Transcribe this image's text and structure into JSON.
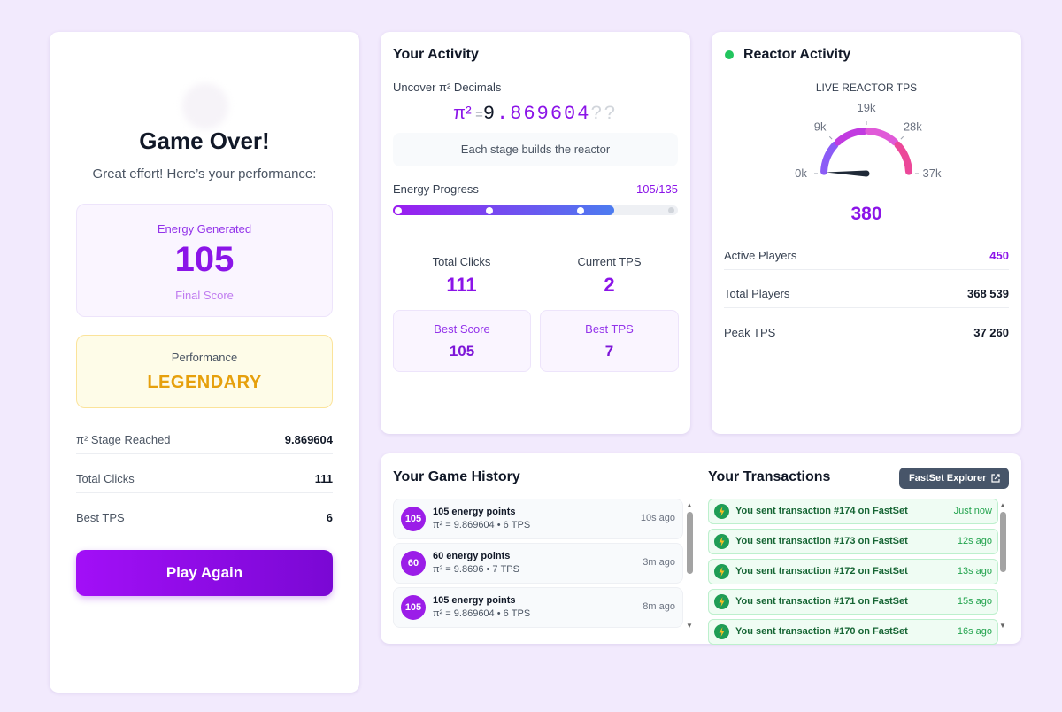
{
  "left_card": {
    "title": "Game Over!",
    "subtitle": "Great effort! Here’s your performance:",
    "energy": {
      "label": "Energy Generated",
      "value": "105",
      "caption": "Final Score"
    },
    "performance": {
      "label": "Performance",
      "value": "LEGENDARY"
    },
    "stats": [
      {
        "label": "π² Stage Reached",
        "value": "9.869604"
      },
      {
        "label": "Total Clicks",
        "value": "111"
      },
      {
        "label": "Best TPS",
        "value": "6"
      }
    ],
    "button": "Play Again"
  },
  "activity": {
    "title": "Your Activity",
    "subtitle": "Uncover π² Decimals",
    "pi": {
      "symbol": "π²",
      "equals": "=",
      "integer": "9",
      "decimals": ".869604",
      "unknown": "??"
    },
    "banner": "Each stage builds the reactor",
    "progress": {
      "label": "Energy Progress",
      "value": 105,
      "max": 135,
      "value_label": "105/135"
    },
    "stats": [
      {
        "label": "Total Clicks",
        "value": "111"
      },
      {
        "label": "Current TPS",
        "value": "2"
      }
    ],
    "best": [
      {
        "label": "Best Score",
        "value": "105"
      },
      {
        "label": "Best TPS",
        "value": "7"
      }
    ]
  },
  "reactor": {
    "title": "Reactor Activity",
    "gauge": {
      "label": "LIVE REACTOR TPS",
      "min": 0,
      "max": 37260,
      "ticks": [
        {
          "value": 0,
          "label": "0k"
        },
        {
          "value": 9315,
          "label": "9k"
        },
        {
          "value": 18630,
          "label": "19k"
        },
        {
          "value": 27945,
          "label": "28k"
        },
        {
          "value": 37260,
          "label": "37k"
        }
      ],
      "value": 380
    },
    "rows": [
      {
        "label": "Active Players",
        "value": "450"
      },
      {
        "label": "Total Players",
        "value": "368 539"
      },
      {
        "label": "Peak TPS",
        "value": "37 260"
      }
    ]
  },
  "history": {
    "title": "Your Game History",
    "items": [
      {
        "badge": "105",
        "title": "105 energy points",
        "detail": "π² = 9.869604 • 6 TPS",
        "time": "10s ago"
      },
      {
        "badge": "60",
        "title": "60 energy points",
        "detail": "π² = 9.8696 • 7 TPS",
        "time": "3m ago"
      },
      {
        "badge": "105",
        "title": "105 energy points",
        "detail": "π² = 9.869604 • 6 TPS",
        "time": "8m ago"
      }
    ]
  },
  "transactions": {
    "title": "Your Transactions",
    "button": "FastSet Explorer",
    "items": [
      {
        "text": "You sent transaction #174 on FastSet",
        "time": "Just now"
      },
      {
        "text": "You sent transaction #173 on FastSet",
        "time": "12s ago"
      },
      {
        "text": "You sent transaction #172 on FastSet",
        "time": "13s ago"
      },
      {
        "text": "You sent transaction #171 on FastSet",
        "time": "15s ago"
      },
      {
        "text": "You sent transaction #170 on FastSet",
        "time": "16s ago"
      }
    ]
  }
}
